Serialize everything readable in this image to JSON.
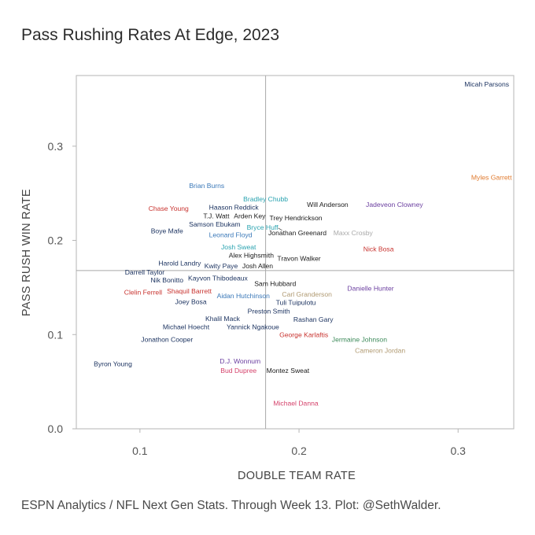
{
  "page": {
    "title": "Pass Rushing Rates At Edge, 2023",
    "caption": "ESPN Analytics / NFL Next Gen Stats. Through Week 13. Plot: @SethWalder."
  },
  "colors": {
    "navy": "#1d3461",
    "black": "#1a1a1a",
    "blue": "#3a78b8",
    "teal": "#2aa3b0",
    "red": "#c8332f",
    "orange": "#e07a2e",
    "purple": "#6b3fa0",
    "gray": "#a9a9a9",
    "tan": "#b09a72",
    "green": "#3d8a5a",
    "pink": "#d4416a",
    "frame": "#b5b5b5",
    "refline": "#a9a9a9"
  },
  "chart_data": {
    "type": "scatter",
    "title": "Pass Rushing Rates At Edge, 2023",
    "xlabel": "DOUBLE TEAM RATE",
    "ylabel": "PASS RUSH WIN RATE",
    "xlim": [
      0.06,
      0.335
    ],
    "ylim": [
      0.0,
      0.375
    ],
    "xticks": [
      0.1,
      0.2,
      0.3
    ],
    "xtick_labels": [
      "0.1",
      "0.2",
      "0.3"
    ],
    "yticks": [
      0.0,
      0.1,
      0.2,
      0.3
    ],
    "ytick_labels": [
      "0.0",
      "0.1",
      "0.2",
      "0.3"
    ],
    "grid": false,
    "reference_lines": {
      "x": 0.179,
      "y": 0.168
    },
    "points": [
      {
        "name": "Micah Parsons",
        "x": 0.318,
        "y": 0.366,
        "color": "navy"
      },
      {
        "name": "Myles Garrett",
        "x": 0.321,
        "y": 0.267,
        "color": "orange"
      },
      {
        "name": "Brian Burns",
        "x": 0.142,
        "y": 0.258,
        "color": "blue"
      },
      {
        "name": "Bradley Chubb",
        "x": 0.179,
        "y": 0.244,
        "color": "teal"
      },
      {
        "name": "Will Anderson",
        "x": 0.218,
        "y": 0.238,
        "color": "black"
      },
      {
        "name": "Jadeveon Clowney",
        "x": 0.26,
        "y": 0.238,
        "color": "purple"
      },
      {
        "name": "Chase Young",
        "x": 0.118,
        "y": 0.234,
        "color": "red"
      },
      {
        "name": "Haason Reddick",
        "x": 0.159,
        "y": 0.235,
        "color": "navy"
      },
      {
        "name": "T.J. Watt",
        "x": 0.148,
        "y": 0.226,
        "color": "black"
      },
      {
        "name": "Arden Key",
        "x": 0.169,
        "y": 0.226,
        "color": "black"
      },
      {
        "name": "Trey Hendrickson",
        "x": 0.198,
        "y": 0.224,
        "color": "black"
      },
      {
        "name": "Samson Ebukam",
        "x": 0.147,
        "y": 0.217,
        "color": "navy"
      },
      {
        "name": "Bryce Huff",
        "x": 0.177,
        "y": 0.214,
        "color": "teal"
      },
      {
        "name": "Boye Mafe",
        "x": 0.117,
        "y": 0.21,
        "color": "navy"
      },
      {
        "name": "Jonathan Greenard",
        "x": 0.199,
        "y": 0.208,
        "color": "black"
      },
      {
        "name": "Maxx Crosby",
        "x": 0.234,
        "y": 0.208,
        "color": "gray"
      },
      {
        "name": "Leonard Floyd",
        "x": 0.157,
        "y": 0.206,
        "color": "blue"
      },
      {
        "name": "Josh Sweat",
        "x": 0.162,
        "y": 0.193,
        "color": "teal"
      },
      {
        "name": "Nick Bosa",
        "x": 0.25,
        "y": 0.191,
        "color": "red"
      },
      {
        "name": "Alex Highsmith",
        "x": 0.17,
        "y": 0.184,
        "color": "black"
      },
      {
        "name": "Travon Walker",
        "x": 0.2,
        "y": 0.181,
        "color": "black"
      },
      {
        "name": "Harold Landry",
        "x": 0.125,
        "y": 0.176,
        "color": "navy"
      },
      {
        "name": "Kwity Paye",
        "x": 0.151,
        "y": 0.173,
        "color": "navy"
      },
      {
        "name": "Josh Allen",
        "x": 0.174,
        "y": 0.173,
        "color": "black"
      },
      {
        "name": "Darrell Taylor",
        "x": 0.103,
        "y": 0.166,
        "color": "navy"
      },
      {
        "name": "Nik Bonitto",
        "x": 0.117,
        "y": 0.158,
        "color": "navy"
      },
      {
        "name": "Kayvon Thibodeaux",
        "x": 0.149,
        "y": 0.16,
        "color": "navy"
      },
      {
        "name": "Sam Hubbard",
        "x": 0.185,
        "y": 0.154,
        "color": "black"
      },
      {
        "name": "Danielle Hunter",
        "x": 0.245,
        "y": 0.149,
        "color": "purple"
      },
      {
        "name": "Clelin Ferrell",
        "x": 0.102,
        "y": 0.145,
        "color": "red"
      },
      {
        "name": "Shaquil Barrett",
        "x": 0.131,
        "y": 0.146,
        "color": "red"
      },
      {
        "name": "Carl Granderson",
        "x": 0.205,
        "y": 0.143,
        "color": "tan"
      },
      {
        "name": "Aidan Hutchinson",
        "x": 0.165,
        "y": 0.141,
        "color": "blue"
      },
      {
        "name": "Joey Bosa",
        "x": 0.132,
        "y": 0.135,
        "color": "navy"
      },
      {
        "name": "Tuli Tuipulotu",
        "x": 0.198,
        "y": 0.134,
        "color": "navy"
      },
      {
        "name": "Preston Smith",
        "x": 0.181,
        "y": 0.125,
        "color": "navy"
      },
      {
        "name": "Khalil Mack",
        "x": 0.152,
        "y": 0.117,
        "color": "navy"
      },
      {
        "name": "Rashan Gary",
        "x": 0.209,
        "y": 0.116,
        "color": "navy"
      },
      {
        "name": "Michael Hoecht",
        "x": 0.129,
        "y": 0.108,
        "color": "navy"
      },
      {
        "name": "Yannick Ngakoue",
        "x": 0.171,
        "y": 0.108,
        "color": "navy"
      },
      {
        "name": "George Karlaftis",
        "x": 0.203,
        "y": 0.1,
        "color": "red"
      },
      {
        "name": "Jermaine Johnson",
        "x": 0.238,
        "y": 0.095,
        "color": "green"
      },
      {
        "name": "Jonathon Cooper",
        "x": 0.117,
        "y": 0.095,
        "color": "navy"
      },
      {
        "name": "Cameron Jordan",
        "x": 0.251,
        "y": 0.083,
        "color": "tan"
      },
      {
        "name": "Byron Young",
        "x": 0.083,
        "y": 0.069,
        "color": "navy"
      },
      {
        "name": "D.J. Wonnum",
        "x": 0.163,
        "y": 0.072,
        "color": "purple"
      },
      {
        "name": "Bud Dupree",
        "x": 0.162,
        "y": 0.062,
        "color": "pink"
      },
      {
        "name": "Montez Sweat",
        "x": 0.193,
        "y": 0.062,
        "color": "black"
      },
      {
        "name": "Michael Danna",
        "x": 0.198,
        "y": 0.027,
        "color": "pink"
      }
    ]
  }
}
